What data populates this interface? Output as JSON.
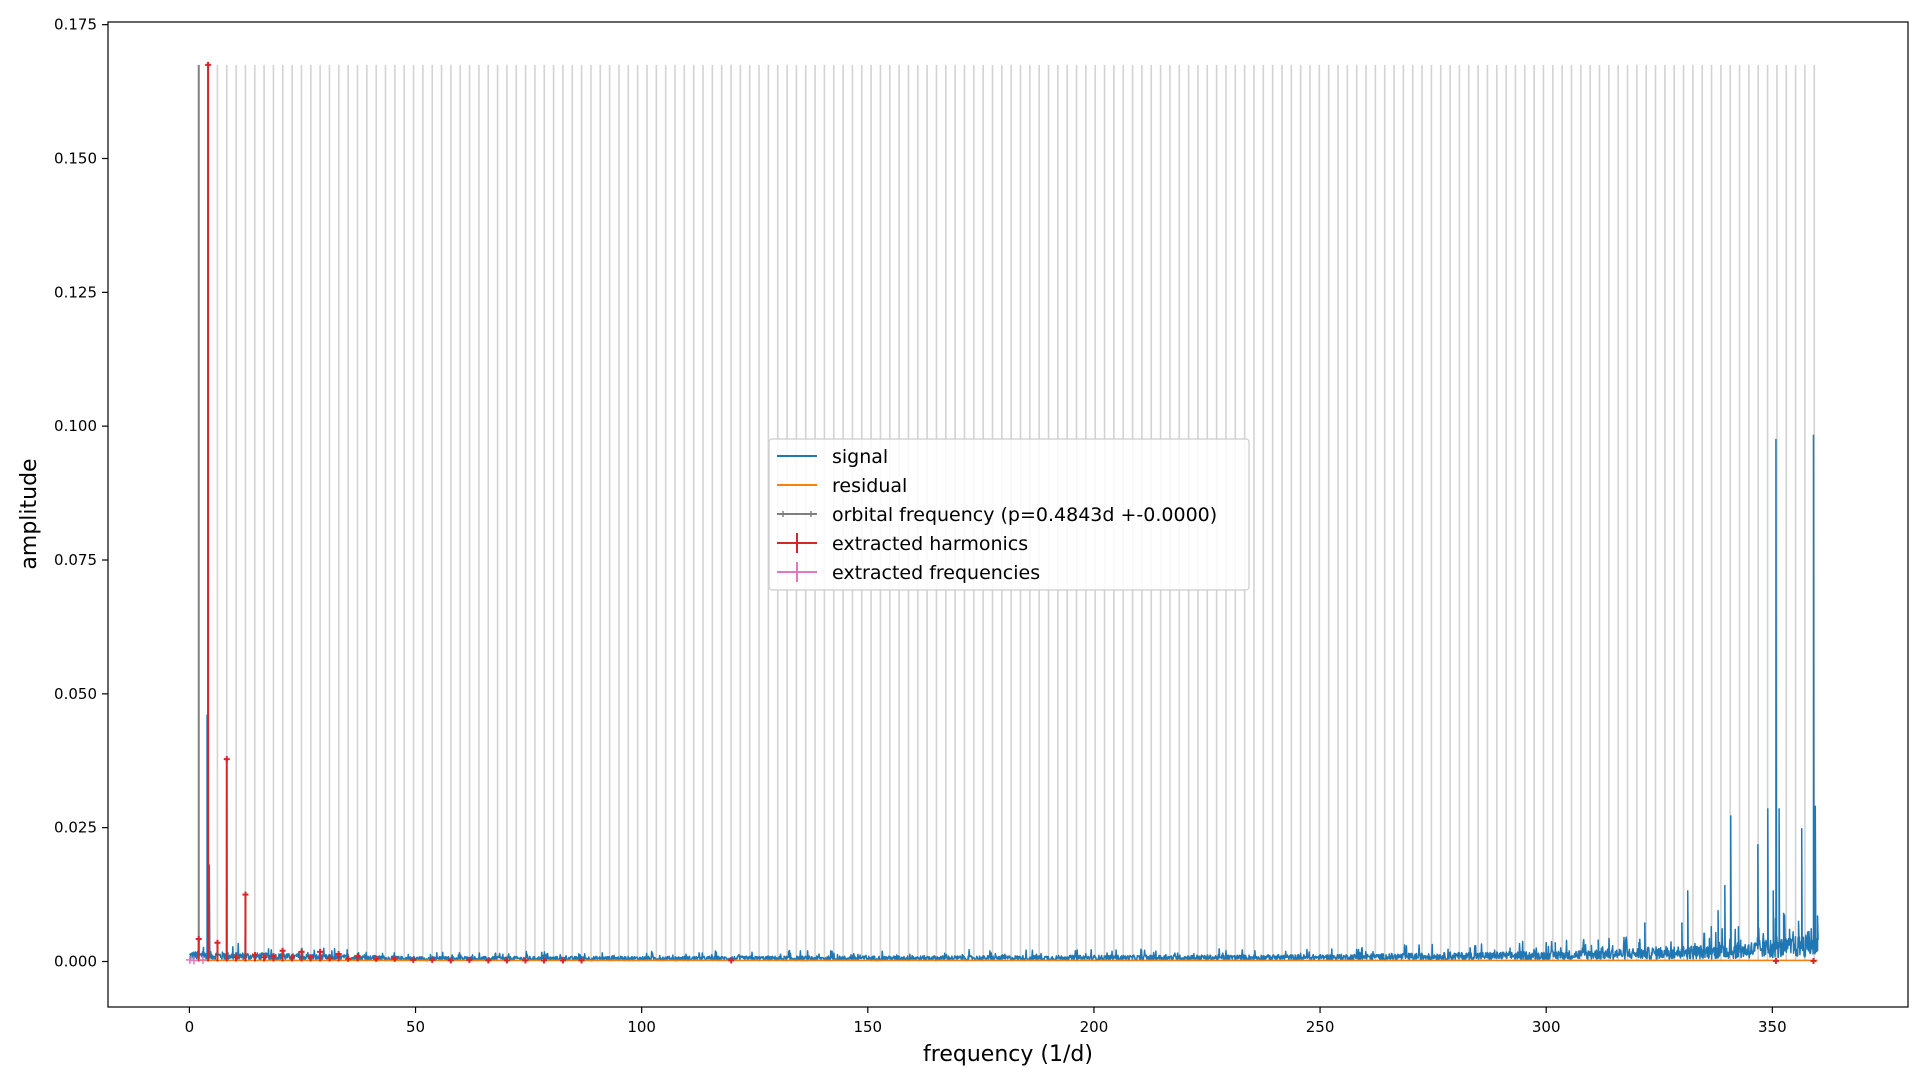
{
  "chart_data": {
    "type": "line",
    "title": "",
    "xlabel": "frequency (1/d)",
    "ylabel": "amplitude",
    "xlim": [
      -18,
      380
    ],
    "ylim": [
      -0.0085,
      0.1755
    ],
    "x_ticks": [
      0,
      50,
      100,
      150,
      200,
      250,
      300,
      350
    ],
    "x_tick_labels": [
      "0",
      "50",
      "100",
      "150",
      "200",
      "250",
      "300",
      "350"
    ],
    "y_ticks": [
      0.0,
      0.025,
      0.05,
      0.075,
      0.1,
      0.125,
      0.15,
      0.175
    ],
    "y_tick_labels": [
      "0.000",
      "0.025",
      "0.050",
      "0.075",
      "0.100",
      "0.125",
      "0.150",
      "0.175"
    ],
    "grid": false,
    "legend_position": "center",
    "legend": [
      {
        "label": "signal",
        "color": "#1f77b4",
        "marker": "none"
      },
      {
        "label": "residual",
        "color": "#ff7f0e",
        "marker": "none"
      },
      {
        "label": "orbital frequency (p=0.4843d +-0.0000)",
        "color": "#7f7f7f",
        "marker": "small-plus"
      },
      {
        "label": "extracted harmonics",
        "color": "#d62728",
        "marker": "plus"
      },
      {
        "label": "extracted frequencies",
        "color": "#e377c2",
        "marker": "plus"
      }
    ],
    "orbital_frequency": 2.0648,
    "orbital_harmonic_lines": {
      "start": 2.0648,
      "step": 2.0648,
      "end": 359.3,
      "amplitude": 0.1675,
      "color": "#d3d3d3"
    },
    "signal": {
      "name": "signal",
      "color": "#1f77b4",
      "x_range": [
        0,
        360
      ],
      "noise_floor": [
        [
          0,
          0.0015
        ],
        [
          50,
          0.0007
        ],
        [
          150,
          0.0008
        ],
        [
          250,
          0.001
        ],
        [
          300,
          0.0015
        ],
        [
          340,
          0.0025
        ],
        [
          360,
          0.004
        ]
      ],
      "peaks": [
        {
          "x": 4.13,
          "y": 0.167
        },
        {
          "x": 3.9,
          "y": 0.046
        },
        {
          "x": 4.4,
          "y": 0.018
        },
        {
          "x": 8.26,
          "y": 0.038
        },
        {
          "x": 12.39,
          "y": 0.0125
        },
        {
          "x": 2.06,
          "y": 0.004
        },
        {
          "x": 6.2,
          "y": 0.0035
        },
        {
          "x": 16.5,
          "y": 0.0015
        },
        {
          "x": 20.6,
          "y": 0.002
        },
        {
          "x": 24.8,
          "y": 0.0018
        },
        {
          "x": 28.9,
          "y": 0.0018
        },
        {
          "x": 33.0,
          "y": 0.0015
        },
        {
          "x": 37.2,
          "y": 0.001
        },
        {
          "x": 292.0,
          "y": 0.0025
        },
        {
          "x": 300.5,
          "y": 0.0028
        },
        {
          "x": 302.0,
          "y": 0.0035
        },
        {
          "x": 308.0,
          "y": 0.0025
        },
        {
          "x": 310.0,
          "y": 0.003
        },
        {
          "x": 311.5,
          "y": 0.004
        },
        {
          "x": 320.5,
          "y": 0.0035
        },
        {
          "x": 321.8,
          "y": 0.0072
        },
        {
          "x": 326.5,
          "y": 0.0028
        },
        {
          "x": 330.0,
          "y": 0.0072
        },
        {
          "x": 331.3,
          "y": 0.0132
        },
        {
          "x": 336.5,
          "y": 0.0065
        },
        {
          "x": 338.0,
          "y": 0.0095
        },
        {
          "x": 339.5,
          "y": 0.0142
        },
        {
          "x": 340.8,
          "y": 0.0272
        },
        {
          "x": 342.5,
          "y": 0.0065
        },
        {
          "x": 346.8,
          "y": 0.0218
        },
        {
          "x": 349.0,
          "y": 0.0285
        },
        {
          "x": 350.2,
          "y": 0.0132
        },
        {
          "x": 350.8,
          "y": 0.0975
        },
        {
          "x": 351.5,
          "y": 0.0285
        },
        {
          "x": 352.5,
          "y": 0.009
        },
        {
          "x": 353.8,
          "y": 0.006
        },
        {
          "x": 355.8,
          "y": 0.0075
        },
        {
          "x": 356.5,
          "y": 0.0248
        },
        {
          "x": 357.8,
          "y": 0.0055
        },
        {
          "x": 359.1,
          "y": 0.0983
        },
        {
          "x": 359.5,
          "y": 0.029
        },
        {
          "x": 360.0,
          "y": 0.0085
        }
      ]
    },
    "residual": {
      "name": "residual",
      "color": "#ff7f0e",
      "x_range": [
        0,
        360
      ],
      "y": 0.0002
    },
    "extracted_harmonics": {
      "name": "extracted harmonics",
      "color": "#d62728",
      "points": [
        {
          "x": 2.06,
          "y": 0.0042
        },
        {
          "x": 4.13,
          "y": 0.1675
        },
        {
          "x": 6.2,
          "y": 0.0035
        },
        {
          "x": 8.26,
          "y": 0.0378
        },
        {
          "x": 10.3,
          "y": 0.0008
        },
        {
          "x": 12.39,
          "y": 0.0125
        },
        {
          "x": 14.5,
          "y": 0.0012
        },
        {
          "x": 16.5,
          "y": 0.0008
        },
        {
          "x": 18.6,
          "y": 0.001
        },
        {
          "x": 20.6,
          "y": 0.002
        },
        {
          "x": 22.7,
          "y": 0.0008
        },
        {
          "x": 24.8,
          "y": 0.0018
        },
        {
          "x": 26.8,
          "y": 0.0008
        },
        {
          "x": 28.9,
          "y": 0.0018
        },
        {
          "x": 31.0,
          "y": 0.0006
        },
        {
          "x": 33.0,
          "y": 0.0014
        },
        {
          "x": 35.1,
          "y": 0.0005
        },
        {
          "x": 37.2,
          "y": 0.001
        },
        {
          "x": 41.3,
          "y": 0.0005
        },
        {
          "x": 45.4,
          "y": 0.0005
        },
        {
          "x": 49.5,
          "y": 0.0003
        },
        {
          "x": 53.7,
          "y": 0.0003
        },
        {
          "x": 57.8,
          "y": 0.0002
        },
        {
          "x": 61.9,
          "y": 0.0003
        },
        {
          "x": 66.1,
          "y": 0.0002
        },
        {
          "x": 70.2,
          "y": 0.0002
        },
        {
          "x": 74.3,
          "y": 0.0002
        },
        {
          "x": 78.4,
          "y": 0.0002
        },
        {
          "x": 82.6,
          "y": 0.0002
        },
        {
          "x": 86.7,
          "y": 0.0002
        },
        {
          "x": 119.8,
          "y": 0.0002
        },
        {
          "x": 350.8,
          "y": 0.0001
        },
        {
          "x": 359.1,
          "y": 0.0001
        }
      ]
    },
    "extracted_frequencies": {
      "name": "extracted frequencies",
      "color": "#e377c2",
      "points": [
        {
          "x": 0.1,
          "y": 0.0003
        },
        {
          "x": 1.0,
          "y": 0.0002
        },
        {
          "x": 3.0,
          "y": 0.0003
        }
      ]
    }
  }
}
